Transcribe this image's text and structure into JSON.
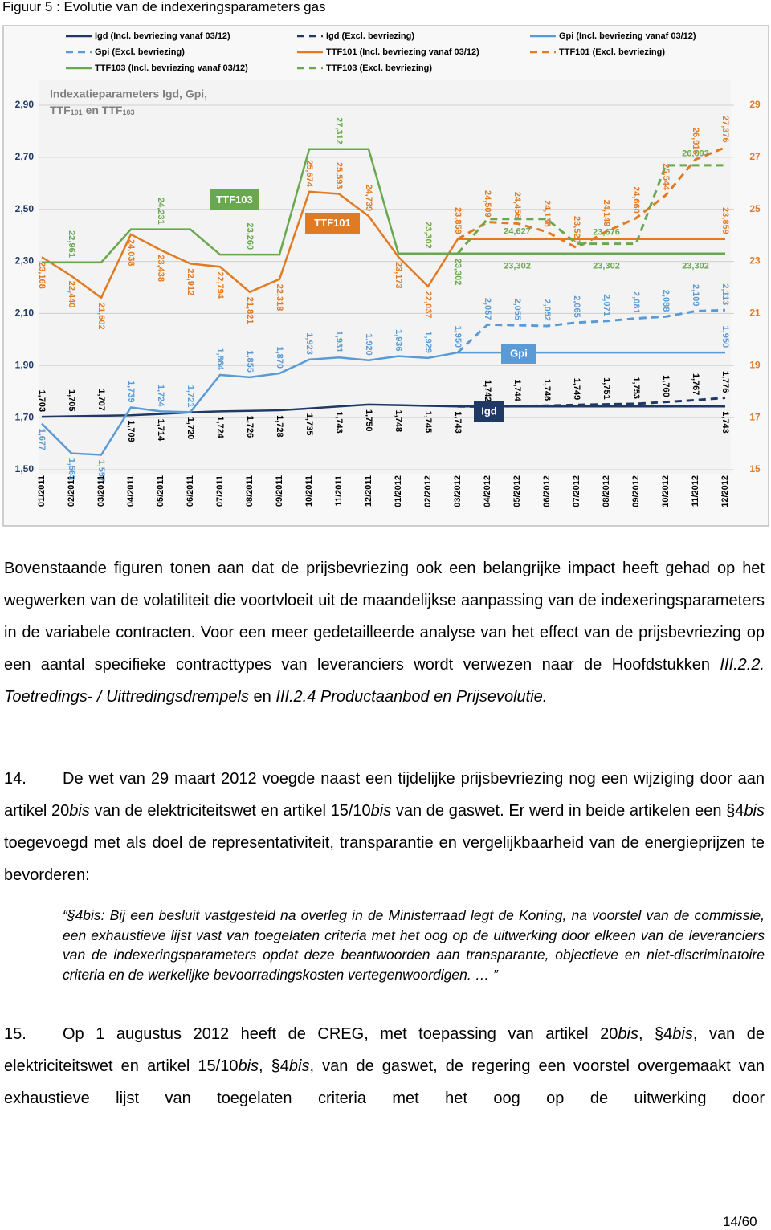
{
  "caption": "Figuur 5 : Evolutie van de indexeringsparameters gas",
  "chart_data": {
    "type": "line",
    "title_line_1": "Indexatieparameters Igd, Gpi,",
    "title_line_2": [
      "TTF",
      "101",
      " en TTF",
      "103"
    ],
    "annotations": [
      "TTF103",
      "TTF101",
      "Gpi",
      "Igd"
    ],
    "legend": "top",
    "grid": true,
    "categories": [
      "01/2011",
      "02/2011",
      "03/2011",
      "04/2011",
      "05/2011",
      "06/2011",
      "07/2011",
      "08/2011",
      "09/2011",
      "10/2011",
      "11/2011",
      "12/2011",
      "01/2012",
      "02/2012",
      "03/2012",
      "04/2012",
      "05/2012",
      "06/2012",
      "07/2012",
      "08/2012",
      "09/2012",
      "10/2012",
      "11/2012",
      "12/2012"
    ],
    "ylim": [
      1.5,
      2.9
    ],
    "yticks": [
      {
        "value": 1.5,
        "label": "1,50"
      },
      {
        "value": 1.7,
        "label": "1,70"
      },
      {
        "value": 1.9,
        "label": "1,90"
      },
      {
        "value": 2.1,
        "label": "2,10"
      },
      {
        "value": 2.3,
        "label": "2,30"
      },
      {
        "value": 2.5,
        "label": "2,50"
      },
      {
        "value": 2.7,
        "label": "2,70"
      },
      {
        "value": 2.9,
        "label": "2,90"
      }
    ],
    "y2lim": [
      15,
      29
    ],
    "y2ticks": [
      15,
      17,
      19,
      21,
      23,
      25,
      27,
      29
    ],
    "series": [
      {
        "name": "Igd (Incl. bevriezing vanaf 03/12)",
        "color": "#1f3864",
        "dash": false,
        "values": [
          1.703,
          1.705,
          1.707,
          1.709,
          1.714,
          1.72,
          1.724,
          1.726,
          1.728,
          1.735,
          1.743,
          1.75,
          1.748,
          1.745,
          1.743,
          1.743,
          1.743,
          1.743,
          1.743,
          1.743,
          1.743,
          1.743,
          1.743,
          1.743
        ],
        "value_labels": [
          "1,703",
          "1,705",
          "1,707",
          "1,709",
          "1,714",
          "1,720",
          "1,724",
          "1,726",
          "1,728",
          "1,735",
          "1,743",
          "1,750",
          "1,748",
          "1,745",
          "1,743",
          null,
          null,
          null,
          null,
          null,
          null,
          null,
          null,
          "1,743"
        ]
      },
      {
        "name": "Igd (Excl. bevriezing)",
        "color": "#1f3864",
        "dash": true,
        "values": [
          null,
          null,
          null,
          null,
          null,
          null,
          null,
          null,
          null,
          null,
          null,
          null,
          null,
          null,
          1.743,
          1.742,
          1.744,
          1.746,
          1.749,
          1.751,
          1.753,
          1.76,
          1.767,
          1.776
        ],
        "value_labels": [
          null,
          null,
          null,
          null,
          null,
          null,
          null,
          null,
          null,
          null,
          null,
          null,
          null,
          null,
          null,
          "1,742",
          "1,744",
          "1,746",
          "1,749",
          "1,751",
          "1,753",
          "1,760",
          "1,767",
          "1,776"
        ]
      },
      {
        "name": "Gpi (Incl. bevriezing vanaf 03/12)",
        "color": "#5b9bd5",
        "dash": false,
        "values": [
          1.677,
          1.563,
          1.557,
          1.739,
          1.724,
          1.721,
          1.864,
          1.855,
          1.87,
          1.923,
          1.931,
          1.92,
          1.936,
          1.929,
          1.95,
          1.95,
          1.95,
          1.95,
          1.95,
          1.95,
          1.95,
          1.95,
          1.95,
          1.95
        ],
        "value_labels": [
          "1,677",
          "1,563",
          "1,557",
          "1,739",
          "1,724",
          "1,721",
          "1,864",
          "1,855",
          "1,870",
          "1,923",
          "1,931",
          "1,920",
          "1,936",
          "1,929",
          "1,950",
          null,
          null,
          null,
          null,
          null,
          null,
          null,
          null,
          "1,950"
        ]
      },
      {
        "name": "Gpi (Excl. bevriezing)",
        "color": "#5b9bd5",
        "dash": true,
        "values": [
          null,
          null,
          null,
          null,
          null,
          null,
          null,
          null,
          null,
          null,
          null,
          null,
          null,
          null,
          1.95,
          2.057,
          2.055,
          2.052,
          2.065,
          2.071,
          2.081,
          2.088,
          2.109,
          2.113
        ],
        "value_labels": [
          null,
          null,
          null,
          null,
          null,
          null,
          null,
          null,
          null,
          null,
          null,
          null,
          null,
          null,
          null,
          "2,057",
          "2,055",
          "2,052",
          "2,065",
          "2,071",
          "2,081",
          "2,088",
          "2,109",
          "2,113"
        ]
      },
      {
        "name": "TTF101 (Incl. bevriezing vanaf 03/12)",
        "color": "#e07b24",
        "dash": false,
        "axis": "y2",
        "values": [
          23.168,
          22.44,
          21.602,
          24.038,
          23.438,
          22.912,
          22.794,
          21.821,
          22.318,
          25.674,
          25.593,
          24.739,
          23.173,
          22.037,
          23.859,
          23.859,
          23.859,
          23.859,
          23.859,
          23.859,
          23.859,
          23.859,
          23.859,
          23.859
        ],
        "value_labels": [
          "23,168",
          "22,440",
          "21,602",
          "24,038",
          "23,438",
          "22,912",
          "22,794",
          "21,821",
          "22,318",
          "25,674",
          "25,593",
          "24,739",
          "23,173",
          "22,037",
          "23,859",
          null,
          null,
          null,
          null,
          null,
          null,
          null,
          null,
          "23,859"
        ]
      },
      {
        "name": "TTF101 (Excl. bevriezing)",
        "color": "#e07b24",
        "dash": true,
        "axis": "y2",
        "values": [
          null,
          null,
          null,
          null,
          null,
          null,
          null,
          null,
          null,
          null,
          null,
          null,
          null,
          null,
          23.859,
          24.509,
          24.456,
          24.136,
          23.52,
          24.149,
          24.66,
          25.544,
          26.916,
          27.376
        ],
        "value_labels": [
          null,
          null,
          null,
          null,
          null,
          null,
          null,
          null,
          null,
          null,
          null,
          null,
          null,
          null,
          null,
          "24,509",
          "24,456",
          "24,136",
          "23,520",
          "24,149",
          "24,660",
          "25,544",
          "26,916",
          "27,376"
        ]
      },
      {
        "name": "TTF103 (Incl. bevriezing vanaf 03/12)",
        "color": "#6aa84f",
        "dash": false,
        "axis": "y2",
        "values": [
          22.961,
          22.961,
          22.961,
          24.231,
          24.231,
          24.231,
          23.26,
          23.26,
          23.26,
          27.312,
          27.312,
          27.312,
          23.302,
          23.302,
          23.302,
          23.302,
          23.302,
          23.302,
          23.302,
          23.302,
          23.302,
          23.302,
          23.302,
          23.302
        ],
        "value_labels": [
          null,
          "22,961",
          null,
          null,
          "24,231",
          null,
          null,
          "23,260",
          null,
          null,
          "27,312",
          null,
          null,
          "23,302",
          "23,302",
          null,
          "23,302",
          null,
          null,
          "23,302",
          null,
          null,
          "23,302",
          null
        ]
      },
      {
        "name": "TTF103 (Excl. bevriezing)",
        "color": "#6aa84f",
        "dash": true,
        "axis": "y2",
        "values": [
          null,
          null,
          null,
          null,
          null,
          null,
          null,
          null,
          null,
          null,
          null,
          null,
          null,
          null,
          23.302,
          24.627,
          24.627,
          24.627,
          23.676,
          23.676,
          23.676,
          26.693,
          26.693,
          26.693
        ],
        "value_labels": [
          null,
          null,
          null,
          null,
          null,
          null,
          null,
          null,
          null,
          null,
          null,
          null,
          null,
          null,
          null,
          null,
          "24,627",
          null,
          null,
          "23,676",
          null,
          null,
          "26,693",
          null
        ]
      }
    ]
  },
  "paragraph_1": [
    "Bovenstaande figuren tonen aan dat de prijsbevriezing ook een belangrijke impact heeft gehad op het wegwerken van de volatiliteit die voortvloeit uit de maandelijkse aanpassing van de indexeringsparameters in de variabele contracten. Voor een meer gedetailleerde analyse van het effect van de prijsbevriezing op een aantal specifieke contracttypes van leveranciers wordt verwezen naar de Hoofdstukken ",
    "III.2.2. Toetredings- / Uittredingsdrempels",
    " en ",
    "III.2.4 Productaanbod en Prijsevolutie."
  ],
  "paragraph_2": {
    "number": "14.",
    "text": [
      "De wet van 29 maart 2012 voegde naast een tijdelijke prijsbevriezing nog een wijziging door aan artikel 20",
      "bis",
      " van de elektriciteitswet en artikel 15/10",
      "bis",
      " van de gaswet. Er werd in beide artikelen een §4",
      "bis",
      " toegevoegd met als doel de representativiteit, transparantie en vergelijkbaarheid van de energieprijzen te bevorderen:"
    ]
  },
  "quote": "“§4bis: Bij een besluit vastgesteld na overleg in de Ministerraad legt de Koning, na voorstel van de commissie, een exhaustieve lijst vast van toegelaten criteria met het oog op de uitwerking door elkeen van de leveranciers van de indexeringsparameters opdat deze beantwoorden aan transparante, objectieve en niet-discriminatoire criteria en de werkelijke bevoorradingskosten vertegenwoordigen. … ”",
  "paragraph_3": {
    "number": "15.",
    "text": [
      "Op 1 augustus 2012 heeft de CREG, met toepassing van artikel 20",
      "bis",
      ", §4",
      "bis",
      ", van de elektriciteitswet en artikel 15/10",
      "bis",
      ", §4",
      "bis",
      ", van de gaswet, de regering een voorstel overgemaakt van exhaustieve lijst van toegelaten criteria met het oog op de uitwerking door"
    ]
  },
  "page_number": "14/60"
}
